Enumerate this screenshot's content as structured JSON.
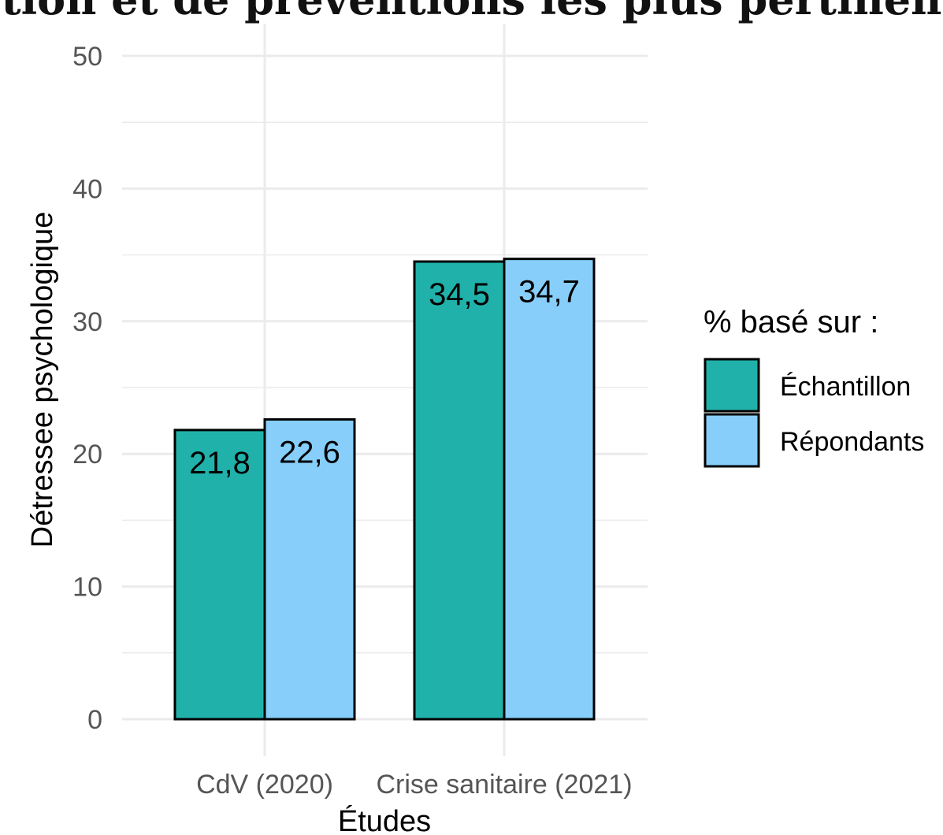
{
  "header_fragment": "tion et de préventions les plus pertinen",
  "chart_data": {
    "type": "bar",
    "title": "",
    "xlabel": "Études",
    "ylabel": "Détressee psychologique",
    "ylim": [
      0,
      50
    ],
    "y_ticks": [
      "0",
      "10",
      "20",
      "30",
      "40",
      "50"
    ],
    "grid": true,
    "categories": [
      "CdV (2020)",
      "Crise sanitaire (2021)"
    ],
    "series": [
      {
        "name": "Échantillon",
        "values": [
          21.8,
          34.5
        ],
        "labels": [
          "21,8",
          "34,5"
        ],
        "color": "#20B2AA"
      },
      {
        "name": "Répondants",
        "values": [
          22.6,
          34.7
        ],
        "labels": [
          "22,6",
          "34,7"
        ],
        "color": "#87CEFA"
      }
    ],
    "legend": {
      "title": "% basé sur :",
      "position": "right"
    }
  }
}
